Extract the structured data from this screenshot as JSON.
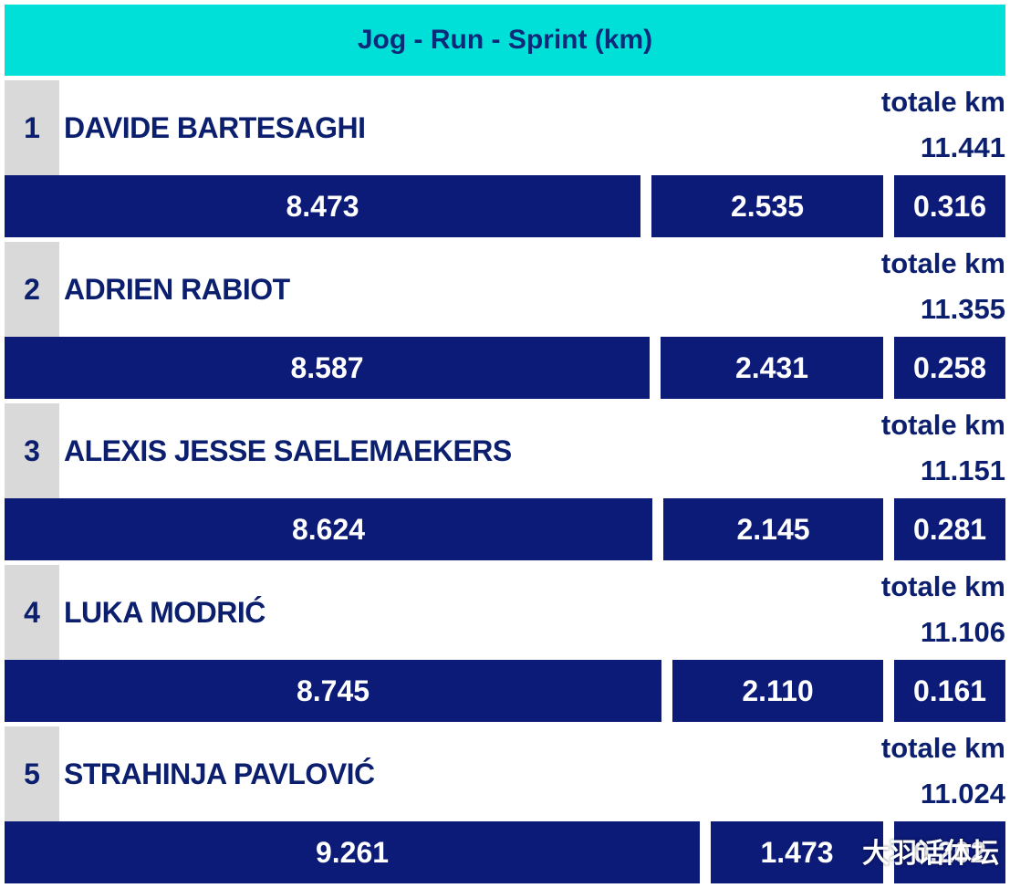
{
  "chart_data": {
    "type": "bar",
    "title": "Jog - Run - Sprint (km)",
    "total_label": "totale km",
    "segments": [
      "Jog",
      "Run",
      "Sprint"
    ],
    "players": [
      {
        "rank": "1",
        "name": "DAVIDE BARTESAGHI",
        "total": "11.441",
        "jog": "8.473",
        "run": "2.535",
        "sprint": "0.316"
      },
      {
        "rank": "2",
        "name": "ADRIEN RABIOT",
        "total": "11.355",
        "jog": "8.587",
        "run": "2.431",
        "sprint": "0.258"
      },
      {
        "rank": "3",
        "name": "ALEXIS JESSE SAELEMAEKERS",
        "total": "11.151",
        "jog": "8.624",
        "run": "2.145",
        "sprint": "0.281"
      },
      {
        "rank": "4",
        "name": "LUKA MODRIĆ",
        "total": "11.106",
        "jog": "8.745",
        "run": "2.110",
        "sprint": "0.161"
      },
      {
        "rank": "5",
        "name": "STRAHINJA PAVLOVIĆ",
        "total": "11.024",
        "jog": "9.261",
        "run": "1.473",
        "sprint": "0.202"
      }
    ],
    "colors": {
      "header": "#00e0d8",
      "bar": "#0c1a78",
      "text": "#0b1f6e",
      "rank_bg": "#d9d9d9"
    }
  },
  "watermark": "大羽话体坛"
}
